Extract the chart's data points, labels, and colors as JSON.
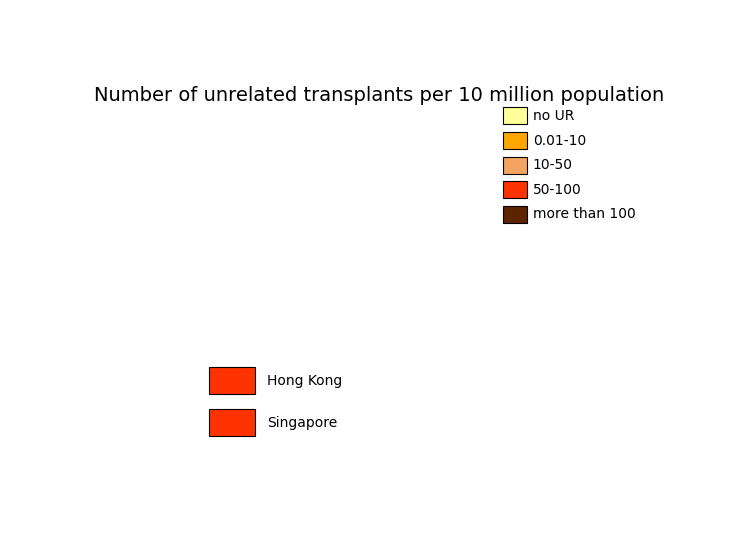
{
  "title": "Number of unrelated transplants per 10 million population",
  "title_fontsize": 14,
  "legend_categories": [
    "no UR",
    "0.01-10",
    "10-50",
    "50-100",
    "more than 100"
  ],
  "legend_colors": [
    "#FFFF99",
    "#FFA500",
    "#F4A460",
    "#FF3300",
    "#5C2500"
  ],
  "extra_legend": [
    {
      "label": "Hong Kong",
      "color": "#FF3300"
    },
    {
      "label": "Singapore",
      "color": "#FF3300"
    }
  ],
  "country_colors": {
    "Afghanistan": "#FFFF99",
    "Armenia": "#FFA500",
    "Azerbaijan": "#FFFF99",
    "Bangladesh": "#FFFF99",
    "Bhutan": "#FFFF99",
    "Brunei": "#FFFF99",
    "Cambodia": "#FFFF99",
    "China": "#F4A460",
    "Georgia": "#FFFF99",
    "India": "#FFA500",
    "Indonesia": "#FFFF99",
    "Iran": "#FFA500",
    "Iraq": "#FFFF99",
    "Japan": "#5C2500",
    "Jordan": "#FFFF99",
    "Kazakhstan": "#FFA500",
    "Kuwait": "#FFFF99",
    "Kyrgyzstan": "#FFFF99",
    "Laos": "#FFFF99",
    "Lebanon": "#FFFF99",
    "Malaysia": "#FFFF99",
    "Mongolia": "#FFFF99",
    "Myanmar": "#FFFF99",
    "Nepal": "#FFFF99",
    "North Korea": "#FFFF99",
    "Oman": "#FFFF99",
    "Pakistan": "#FFA500",
    "Philippines": "#FFFF99",
    "Qatar": "#FFFF99",
    "Russia": "#FFFF99",
    "Saudi Arabia": "#FFFF99",
    "South Korea": "#FFA500",
    "Sri Lanka": "#FFFF99",
    "Syria": "#FFFF99",
    "Taiwan": "#FFFF99",
    "Tajikistan": "#FFFF99",
    "Thailand": "#FFFF99",
    "Timor-Leste": "#FFFF99",
    "Turkmenistan": "#FFFF99",
    "United Arab Emirates": "#FFFF99",
    "Uzbekistan": "#FFFF99",
    "Vietnam": "#FFFF99",
    "Yemen": "#FFFF99",
    "Australia": "#5C2500",
    "New Zealand": "#5C2500",
    "Papua New Guinea": "#FFFF99"
  },
  "default_color": "#FFFF99",
  "background_color": "#ffffff",
  "ocean_color": "#ffffff",
  "map_extent": [
    60,
    160,
    -50,
    60
  ],
  "edge_color": "#aaaaaa",
  "edge_linewidth": 0.5
}
